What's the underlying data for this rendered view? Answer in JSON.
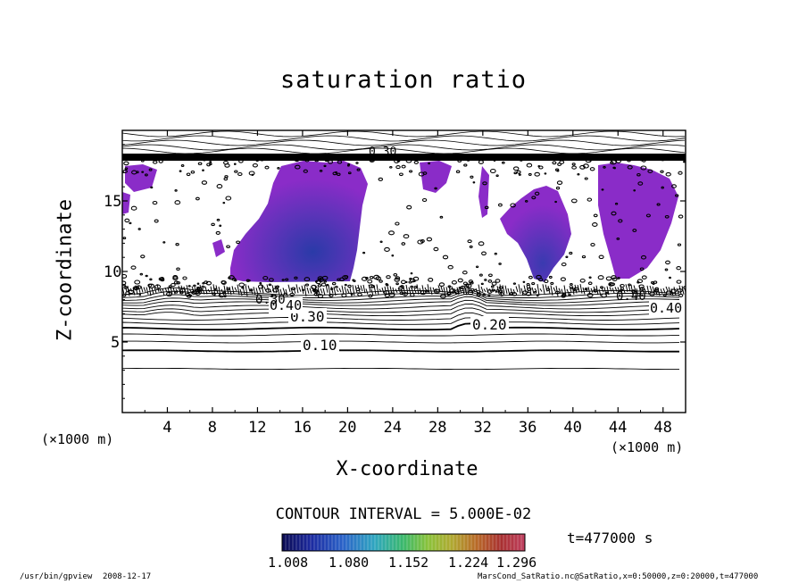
{
  "chart_data": {
    "type": "contour",
    "title": "saturation ratio",
    "xlabel": "X-coordinate",
    "ylabel": "Z-coordinate",
    "x_unit": "(×1000 m)",
    "z_unit": "(×1000 m)",
    "xlim": [
      0,
      50
    ],
    "ylim": [
      0,
      20
    ],
    "x_ticks": [
      "4",
      "8",
      "12",
      "16",
      "20",
      "24",
      "28",
      "32",
      "36",
      "40",
      "44",
      "48"
    ],
    "y_ticks": [
      "5",
      "10",
      "15"
    ],
    "contour_labels": [
      "0.10",
      "0.20",
      "0.30",
      "0.40",
      "0.30",
      "0.40",
      "0.40",
      "0.30"
    ],
    "contour_interval": "CONTOUR INTERVAL = 5.000E-02",
    "colorbar": {
      "ticks": [
        "1.008",
        "1.080",
        "1.152",
        "1.224",
        "1.296"
      ],
      "colors": [
        "#0a0a50",
        "#1c2aa0",
        "#2a62c8",
        "#2fa6c0",
        "#3ab86a",
        "#8ac23a",
        "#b0a830",
        "#b86a28",
        "#a83030",
        "#c04060"
      ]
    },
    "grid": false,
    "legend": "none"
  },
  "time_label": "t=477000 s",
  "footer": {
    "program": "/usr/bin/gpview",
    "date": "2008-12-17",
    "source": "MarsCond_SatRatio.nc@SatRatio,x=0:50000,z=0:20000,t=477000"
  }
}
